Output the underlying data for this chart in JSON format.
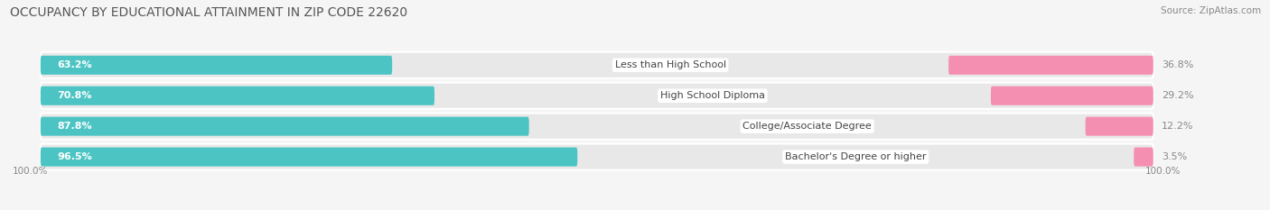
{
  "title": "OCCUPANCY BY EDUCATIONAL ATTAINMENT IN ZIP CODE 22620",
  "source": "Source: ZipAtlas.com",
  "categories": [
    "Less than High School",
    "High School Diploma",
    "College/Associate Degree",
    "Bachelor's Degree or higher"
  ],
  "owner_values": [
    63.2,
    70.8,
    87.8,
    96.5
  ],
  "renter_values": [
    36.8,
    29.2,
    12.2,
    3.5
  ],
  "owner_color": "#4CC4C4",
  "renter_color": "#F48FB1",
  "row_bg_color": "#e8e8e8",
  "background_color": "#f5f5f5",
  "title_fontsize": 10,
  "source_fontsize": 7.5,
  "value_fontsize": 8,
  "cat_fontsize": 8,
  "legend_fontsize": 8,
  "axis_label_left": "100.0%",
  "axis_label_right": "100.0%"
}
